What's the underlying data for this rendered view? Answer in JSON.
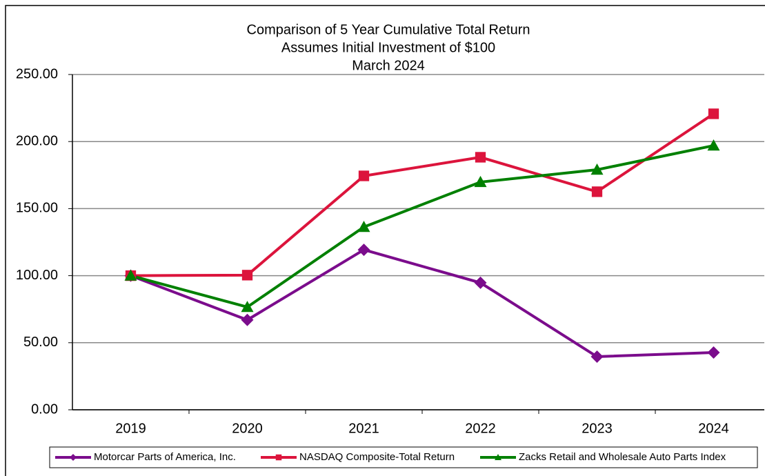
{
  "chart_data": {
    "type": "line",
    "title": "Comparison of 5 Year Cumulative Total Return",
    "subtitle": [
      "Assumes Initial Investment of $100",
      "March 2024"
    ],
    "categories": [
      "2019",
      "2020",
      "2021",
      "2022",
      "2023",
      "2024"
    ],
    "series": [
      {
        "name": "Motorcar Parts of America, Inc.",
        "color": "#7b0c8c",
        "marker": "diamond",
        "values": [
          100,
          67,
          119.3,
          94.7,
          39.6,
          42.7
        ]
      },
      {
        "name": "NASDAQ Composite-Total Return",
        "color": "#dc143c",
        "marker": "square",
        "values": [
          100,
          100.4,
          174.4,
          188.3,
          162.6,
          220.7
        ]
      },
      {
        "name": "Zacks Retail and Wholesale Auto Parts Index",
        "color": "#008000",
        "marker": "triangle",
        "values": [
          100,
          76.6,
          136.3,
          169.8,
          179,
          197
        ]
      }
    ],
    "ylim": [
      0,
      250
    ],
    "yticks": [
      {
        "value": 0,
        "label": "0.00"
      },
      {
        "value": 50,
        "label": "50.00"
      },
      {
        "value": 100,
        "label": "100.00"
      },
      {
        "value": 150,
        "label": "150.00"
      },
      {
        "value": 200,
        "label": "200.00"
      },
      {
        "value": 250,
        "label": "250.00"
      }
    ],
    "grid": true,
    "legend": "bottom"
  }
}
